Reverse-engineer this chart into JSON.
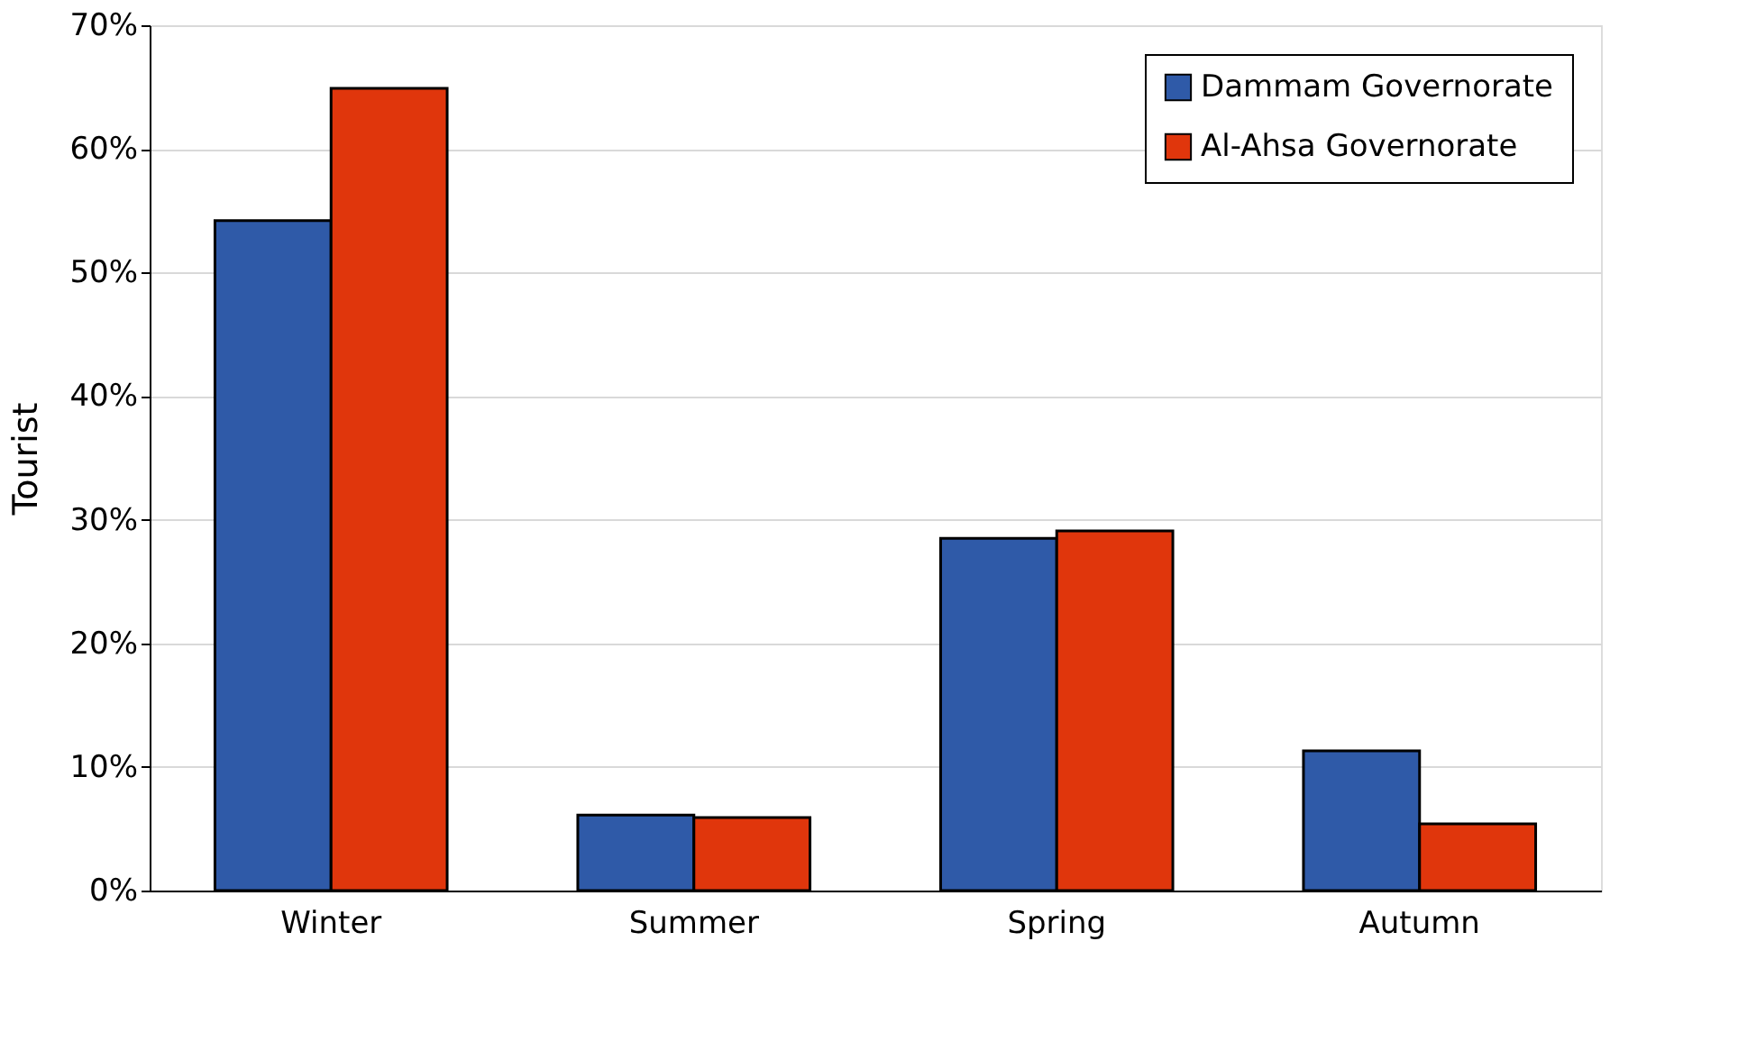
{
  "chart_data": {
    "type": "bar",
    "ylabel": "Tourist",
    "categories": [
      "Winter",
      "Summer",
      "Spring",
      "Autumn"
    ],
    "series": [
      {
        "name": "Dammam Governorate",
        "color": "#2f5aa8",
        "values": [
          54.2,
          6.1,
          28.5,
          11.3
        ]
      },
      {
        "name": "Al-Ahsa Governorate",
        "color": "#e0360c",
        "values": [
          64.9,
          5.9,
          29.1,
          5.4
        ]
      }
    ],
    "ylim": [
      0,
      70
    ],
    "yticks": [
      {
        "value": 0,
        "label": "0%"
      },
      {
        "value": 10,
        "label": "10%"
      },
      {
        "value": 20,
        "label": "20%"
      },
      {
        "value": 30,
        "label": "30%"
      },
      {
        "value": 40,
        "label": "40%"
      },
      {
        "value": 50,
        "label": "50%"
      },
      {
        "value": 60,
        "label": "60%"
      },
      {
        "value": 70,
        "label": "70%"
      }
    ],
    "grid": "y",
    "legend": "top right"
  }
}
